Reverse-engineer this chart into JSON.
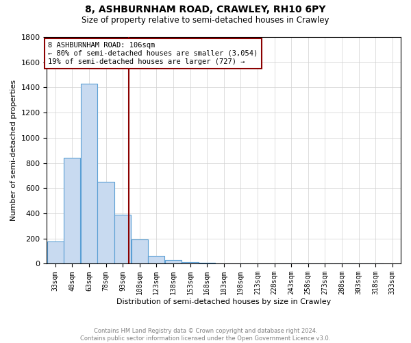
{
  "title": "8, ASHBURNHAM ROAD, CRAWLEY, RH10 6PY",
  "subtitle": "Size of property relative to semi-detached houses in Crawley",
  "xlabel": "Distribution of semi-detached houses by size in Crawley",
  "ylabel": "Number of semi-detached properties",
  "footer_line1": "Contains HM Land Registry data © Crown copyright and database right 2024.",
  "footer_line2": "Contains public sector information licensed under the Open Government Licence v3.0.",
  "property_size": 106,
  "annotation_line1": "8 ASHBURNHAM ROAD: 106sqm",
  "annotation_line2": "← 80% of semi-detached houses are smaller (3,054)",
  "annotation_line3": "19% of semi-detached houses are larger (727) →",
  "bin_labels": [
    "33sqm",
    "48sqm",
    "63sqm",
    "78sqm",
    "93sqm",
    "108sqm",
    "123sqm",
    "138sqm",
    "153sqm",
    "168sqm",
    "183sqm",
    "198sqm",
    "213sqm",
    "228sqm",
    "243sqm",
    "258sqm",
    "273sqm",
    "288sqm",
    "303sqm",
    "318sqm",
    "333sqm"
  ],
  "bin_edges": [
    33,
    48,
    63,
    78,
    93,
    108,
    123,
    138,
    153,
    168,
    183,
    198,
    213,
    228,
    243,
    258,
    273,
    288,
    303,
    318,
    333
  ],
  "bar_values": [
    175,
    840,
    1430,
    650,
    390,
    195,
    65,
    30,
    15,
    8,
    5,
    3,
    2,
    1,
    1,
    0,
    0,
    0,
    0,
    0
  ],
  "bar_color": "#c8daf0",
  "bar_edge_color": "#5a9fd4",
  "property_line_color": "#8b0000",
  "annotation_box_color": "#8b0000",
  "ylim": [
    0,
    1800
  ],
  "yticks": [
    0,
    200,
    400,
    600,
    800,
    1000,
    1200,
    1400,
    1600,
    1800
  ],
  "grid_color": "#d0d0d0",
  "background_color": "#ffffff",
  "bin_width": 15
}
